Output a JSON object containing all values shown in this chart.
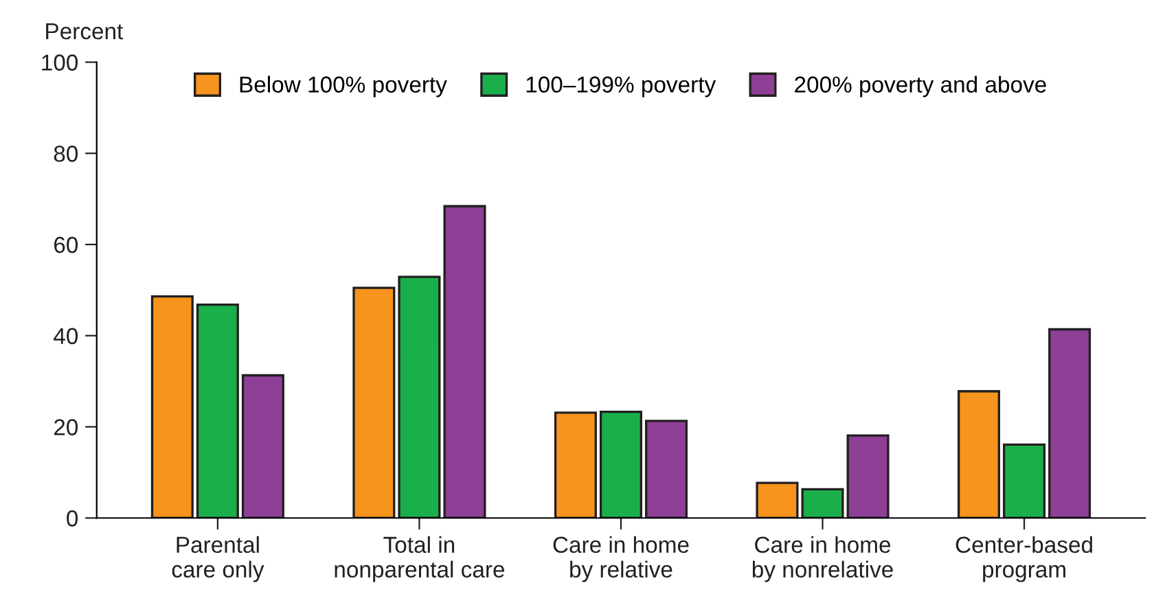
{
  "chart_data": {
    "type": "bar",
    "ylabel": "Percent",
    "categories": [
      "Parental\ncare only",
      "Total in\nnonparental care",
      "Care in home\nby relative",
      "Care in home\nby nonrelative",
      "Center-based\nprogram"
    ],
    "series": [
      {
        "name": "Below 100% poverty",
        "color": "#f7941d",
        "values": [
          48.6,
          50.5,
          23.1,
          7.7,
          27.8
        ]
      },
      {
        "name": "100–199% poverty",
        "color": "#1aaf4b",
        "values": [
          46.8,
          52.9,
          23.3,
          6.3,
          16.1
        ]
      },
      {
        "name": "200% poverty and above",
        "color": "#8e3f96",
        "values": [
          31.3,
          68.4,
          21.3,
          18.1,
          41.4
        ]
      }
    ],
    "ylim": [
      0,
      100
    ],
    "yticks": [
      0,
      20,
      40,
      60,
      80,
      100
    ],
    "grid": false,
    "legend": "top"
  }
}
